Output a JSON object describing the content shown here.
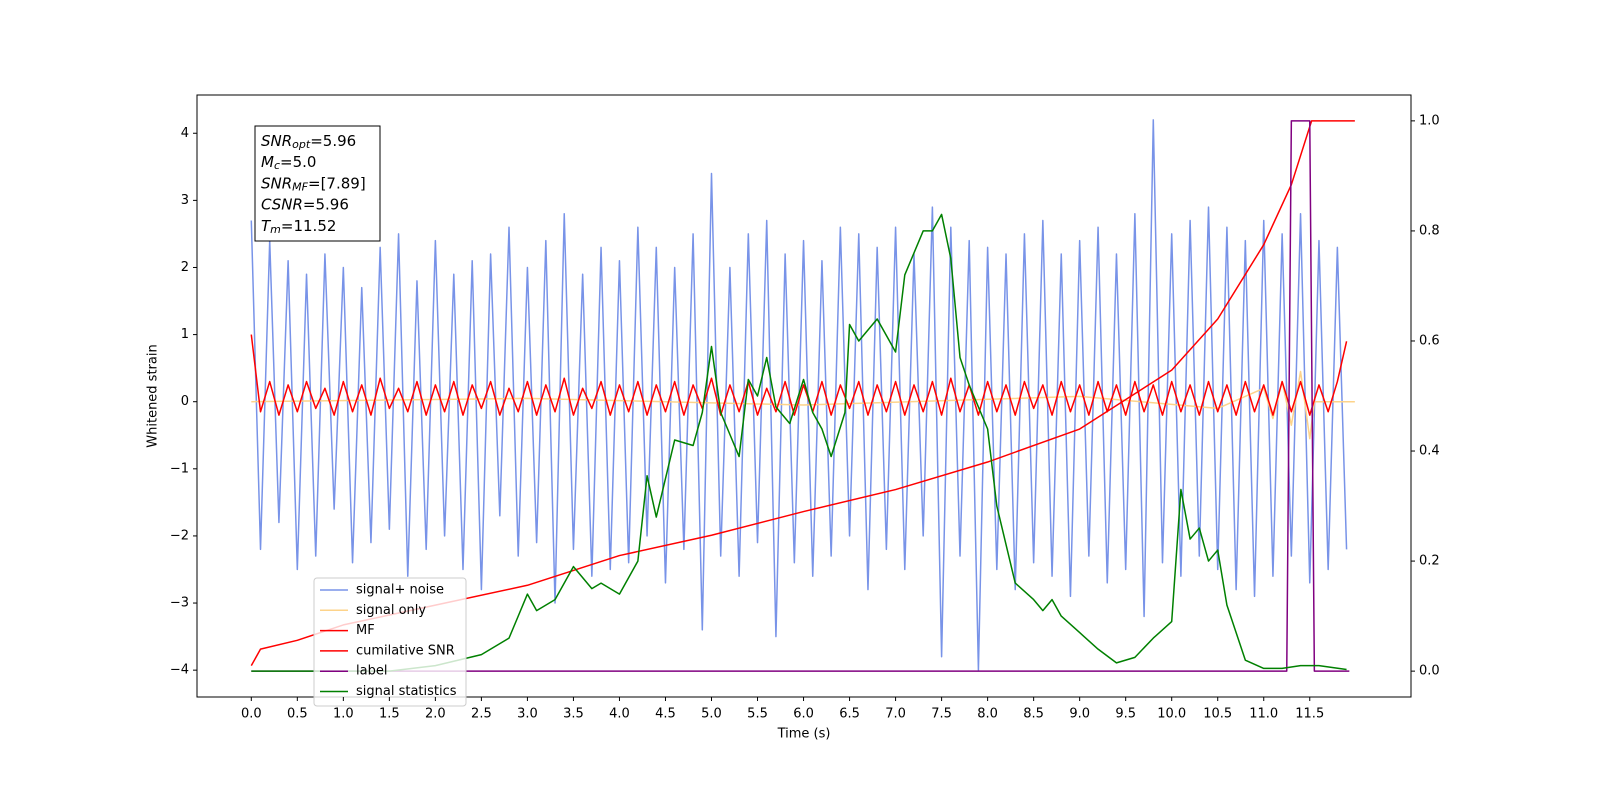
{
  "chart_data": {
    "type": "line",
    "xlabel": "Time (s)",
    "ylabel": "Whitened strain",
    "xlim": [
      -0.59,
      12.6
    ],
    "ylim": [
      -4.4,
      4.57
    ],
    "y2lim": [
      -0.047,
      1.047
    ],
    "xticks": [
      {
        "value": 0,
        "label": "0.0"
      },
      0.5,
      {
        "value": 1,
        "label": "1.0"
      },
      1.5,
      {
        "value": 2,
        "label": "2.0"
      },
      2.5,
      {
        "value": 3,
        "label": "3.0"
      },
      3.5,
      {
        "value": 4,
        "label": "4.0"
      },
      4.5,
      {
        "value": 5,
        "label": "5.0"
      },
      5.5,
      {
        "value": 6,
        "label": "6.0"
      },
      6.5,
      {
        "value": 7,
        "label": "7.0"
      },
      7.5,
      {
        "value": 8,
        "label": "8.0"
      },
      8.5,
      {
        "value": 9,
        "label": "9.0"
      },
      9.5,
      {
        "value": 10,
        "label": "10.0"
      },
      10.5,
      {
        "value": 11,
        "label": "11.0"
      },
      11.5
    ],
    "yticks": [
      {
        "value": -4,
        "label": "−4"
      },
      {
        "value": -3,
        "label": "−3"
      },
      {
        "value": -2,
        "label": "−2"
      },
      {
        "value": -1,
        "label": "−1"
      },
      0,
      1,
      2,
      3,
      4
    ],
    "y2ticks": [
      {
        "value": 0,
        "label": "0.0"
      },
      0.2,
      0.4,
      0.6,
      0.8,
      {
        "value": 1,
        "label": "1.0"
      }
    ],
    "legend_loc": "lower left",
    "annotation": [
      {
        "symbol": "SNR",
        "subscript": "opt",
        "text": "=5.96"
      },
      {
        "symbol": "M",
        "subscript": "c",
        "text": "=5.0"
      },
      {
        "symbol": "SNR",
        "subscript": "MF",
        "text": "=[7.89]"
      },
      {
        "symbol": "CSNR",
        "text": "=5.96"
      },
      {
        "symbol": "T",
        "subscript": "m",
        "text": "=11.52"
      }
    ],
    "series": [
      {
        "name": "signal+ noise",
        "color": "#7893e8",
        "axis": "y",
        "x": [
          0.0,
          0.1,
          0.2,
          0.3,
          0.4,
          0.5,
          0.6,
          0.7,
          0.8,
          0.9,
          1.0,
          1.1,
          1.2,
          1.3,
          1.4,
          1.5,
          1.6,
          1.7,
          1.8,
          1.9,
          2.0,
          2.1,
          2.2,
          2.3,
          2.4,
          2.5,
          2.6,
          2.7,
          2.8,
          2.9,
          3.0,
          3.1,
          3.2,
          3.3,
          3.4,
          3.5,
          3.6,
          3.7,
          3.8,
          3.9,
          4.0,
          4.1,
          4.2,
          4.3,
          4.4,
          4.5,
          4.6,
          4.7,
          4.8,
          4.9,
          5.0,
          5.1,
          5.2,
          5.3,
          5.4,
          5.5,
          5.6,
          5.7,
          5.8,
          5.9,
          6.0,
          6.1,
          6.2,
          6.3,
          6.4,
          6.5,
          6.6,
          6.7,
          6.8,
          6.9,
          7.0,
          7.1,
          7.2,
          7.3,
          7.4,
          7.5,
          7.6,
          7.7,
          7.8,
          7.9,
          8.0,
          8.1,
          8.2,
          8.3,
          8.4,
          8.5,
          8.6,
          8.7,
          8.8,
          8.9,
          9.0,
          9.1,
          9.2,
          9.3,
          9.4,
          9.5,
          9.6,
          9.7,
          9.8,
          9.9,
          10.0,
          10.1,
          10.2,
          10.3,
          10.4,
          10.5,
          10.6,
          10.7,
          10.8,
          10.9,
          11.0,
          11.1,
          11.2,
          11.3,
          11.4,
          11.5,
          11.6,
          11.7,
          11.8,
          11.9
        ],
        "values": [
          2.7,
          -2.2,
          2.4,
          -1.8,
          2.1,
          -2.5,
          1.9,
          -2.3,
          2.2,
          -1.6,
          2.0,
          -2.4,
          1.7,
          -2.1,
          2.3,
          -1.9,
          2.5,
          -2.6,
          1.8,
          -2.2,
          2.4,
          -2.0,
          1.9,
          -2.5,
          2.1,
          -2.8,
          2.2,
          -1.7,
          2.6,
          -2.3,
          2.0,
          -2.1,
          2.4,
          -3.0,
          2.8,
          -2.2,
          1.9,
          -2.6,
          2.3,
          -2.5,
          2.1,
          -2.4,
          2.6,
          -2.0,
          2.3,
          -2.7,
          2.0,
          -2.2,
          2.5,
          -3.4,
          3.4,
          -2.3,
          2.0,
          -2.6,
          2.5,
          -2.1,
          2.7,
          -3.5,
          2.2,
          -2.4,
          2.4,
          -2.6,
          2.1,
          -2.3,
          2.6,
          -2.0,
          2.5,
          -2.8,
          2.3,
          -2.2,
          2.6,
          -2.5,
          2.2,
          -2.0,
          2.9,
          -3.8,
          2.6,
          -2.3,
          2.4,
          -4.0,
          2.3,
          -2.5,
          2.2,
          -2.8,
          2.5,
          -2.4,
          2.7,
          -2.6,
          2.2,
          -2.9,
          2.4,
          -2.3,
          2.6,
          -2.7,
          2.2,
          -2.5,
          2.8,
          -3.2,
          4.2,
          -2.4,
          2.5,
          -2.6,
          2.7,
          -2.3,
          2.9,
          -2.5,
          2.6,
          -2.8,
          2.4,
          -2.9,
          2.7,
          -2.6,
          2.5,
          -2.3,
          2.8,
          -2.7,
          2.4,
          -2.5,
          2.3,
          -2.2
        ]
      },
      {
        "name": "signal only",
        "color": "#fdd38a",
        "axis": "y",
        "x": [
          0,
          3,
          6,
          9,
          10.5,
          11.0,
          11.1,
          11.2,
          11.3,
          11.4,
          11.5,
          11.55,
          11.99
        ],
        "values": [
          0,
          0.05,
          -0.05,
          0.08,
          -0.1,
          0.2,
          -0.25,
          0.3,
          -0.35,
          0.45,
          -0.55,
          0,
          0
        ]
      },
      {
        "name": "MF",
        "color": "#ff0000",
        "axis": "y",
        "x": [
          0.0,
          0.1,
          0.2,
          0.3,
          0.4,
          0.5,
          0.6,
          0.7,
          0.8,
          0.9,
          1.0,
          1.1,
          1.2,
          1.3,
          1.4,
          1.5,
          1.6,
          1.7,
          1.8,
          1.9,
          2.0,
          2.1,
          2.2,
          2.3,
          2.4,
          2.5,
          2.6,
          2.7,
          2.8,
          2.9,
          3.0,
          3.1,
          3.2,
          3.3,
          3.4,
          3.5,
          3.6,
          3.7,
          3.8,
          3.9,
          4.0,
          4.1,
          4.2,
          4.3,
          4.4,
          4.5,
          4.6,
          4.7,
          4.8,
          4.9,
          5.0,
          5.1,
          5.2,
          5.3,
          5.4,
          5.5,
          5.6,
          5.7,
          5.8,
          5.9,
          6.0,
          6.1,
          6.2,
          6.3,
          6.4,
          6.5,
          6.6,
          6.7,
          6.8,
          6.9,
          7.0,
          7.1,
          7.2,
          7.3,
          7.4,
          7.5,
          7.6,
          7.7,
          7.8,
          7.9,
          8.0,
          8.1,
          8.2,
          8.3,
          8.4,
          8.5,
          8.6,
          8.7,
          8.8,
          8.9,
          9.0,
          9.1,
          9.2,
          9.3,
          9.4,
          9.5,
          9.6,
          9.7,
          9.8,
          9.9,
          10.0,
          10.1,
          10.2,
          10.3,
          10.4,
          10.5,
          10.6,
          10.7,
          10.8,
          10.9,
          11.0,
          11.1,
          11.2,
          11.3,
          11.4,
          11.5,
          11.6,
          11.7,
          11.8,
          11.9
        ],
        "values": [
          1.0,
          -0.15,
          0.3,
          -0.2,
          0.25,
          -0.15,
          0.3,
          -0.1,
          0.2,
          -0.2,
          0.3,
          -0.15,
          0.25,
          -0.2,
          0.35,
          -0.1,
          0.2,
          -0.15,
          0.3,
          -0.2,
          0.25,
          -0.15,
          0.3,
          -0.2,
          0.25,
          -0.1,
          0.3,
          -0.2,
          0.2,
          -0.15,
          0.3,
          -0.2,
          0.25,
          -0.15,
          0.35,
          -0.2,
          0.2,
          -0.1,
          0.3,
          -0.2,
          0.25,
          -0.15,
          0.3,
          -0.2,
          0.25,
          -0.15,
          0.3,
          -0.2,
          0.25,
          -0.1,
          0.35,
          -0.2,
          0.25,
          -0.15,
          0.3,
          -0.2,
          0.2,
          -0.15,
          0.3,
          -0.2,
          0.25,
          -0.15,
          0.3,
          -0.2,
          0.25,
          -0.1,
          0.3,
          -0.2,
          0.25,
          -0.15,
          0.3,
          -0.2,
          0.25,
          -0.15,
          0.3,
          -0.2,
          0.35,
          -0.15,
          0.25,
          -0.2,
          0.3,
          -0.15,
          0.25,
          -0.2,
          0.3,
          -0.1,
          0.25,
          -0.2,
          0.3,
          -0.15,
          0.25,
          -0.2,
          0.3,
          -0.15,
          0.25,
          -0.2,
          0.3,
          -0.15,
          0.25,
          -0.2,
          0.3,
          -0.15,
          0.25,
          -0.2,
          0.3,
          -0.15,
          0.25,
          -0.2,
          0.3,
          -0.15,
          0.25,
          -0.2,
          0.3,
          -0.15,
          0.3,
          -0.2,
          0.25,
          -0.15,
          0.3,
          0.9
        ]
      },
      {
        "name": "cumilative SNR",
        "color": "#ff0000",
        "axis": "y2",
        "x": [
          0,
          0.1,
          0.5,
          1,
          2,
          3,
          4,
          5,
          6,
          7,
          8,
          9,
          10,
          10.5,
          11,
          11.3,
          11.52,
          11.99
        ],
        "values": [
          0.01,
          0.04,
          0.056,
          0.084,
          0.12,
          0.156,
          0.21,
          0.247,
          0.29,
          0.33,
          0.38,
          0.44,
          0.547,
          0.64,
          0.775,
          0.884,
          1.0,
          1.0
        ]
      },
      {
        "name": "label",
        "color": "#800080",
        "axis": "y2",
        "x": [
          0,
          11.25,
          11.3,
          11.5,
          11.55,
          11.93
        ],
        "values": [
          0,
          0,
          1,
          1,
          0,
          0
        ]
      },
      {
        "name": "signal statistics",
        "color": "#008000",
        "axis": "y2",
        "x": [
          0,
          1.5,
          2.0,
          2.5,
          2.8,
          2.9,
          3.0,
          3.1,
          3.3,
          3.5,
          3.7,
          3.8,
          4.0,
          4.2,
          4.3,
          4.4,
          4.6,
          4.8,
          4.9,
          5.0,
          5.1,
          5.2,
          5.3,
          5.4,
          5.5,
          5.6,
          5.7,
          5.85,
          6.0,
          6.1,
          6.2,
          6.3,
          6.45,
          6.5,
          6.6,
          6.8,
          7.0,
          7.1,
          7.3,
          7.4,
          7.5,
          7.6,
          7.7,
          7.8,
          8.0,
          8.1,
          8.3,
          8.5,
          8.6,
          8.7,
          8.8,
          9.0,
          9.2,
          9.4,
          9.6,
          9.8,
          10.0,
          10.1,
          10.2,
          10.3,
          10.4,
          10.5,
          10.6,
          10.7,
          10.8,
          11.0,
          11.2,
          11.4,
          11.6,
          11.9
        ],
        "values": [
          0,
          0,
          0.01,
          0.03,
          0.06,
          0.1,
          0.14,
          0.11,
          0.13,
          0.19,
          0.15,
          0.16,
          0.14,
          0.2,
          0.355,
          0.28,
          0.42,
          0.41,
          0.47,
          0.59,
          0.47,
          0.43,
          0.39,
          0.53,
          0.5,
          0.57,
          0.48,
          0.45,
          0.53,
          0.47,
          0.44,
          0.39,
          0.47,
          0.63,
          0.6,
          0.64,
          0.58,
          0.72,
          0.8,
          0.8,
          0.83,
          0.75,
          0.57,
          0.52,
          0.44,
          0.3,
          0.16,
          0.13,
          0.11,
          0.13,
          0.1,
          0.07,
          0.04,
          0.015,
          0.025,
          0.06,
          0.09,
          0.33,
          0.24,
          0.26,
          0.2,
          0.22,
          0.12,
          0.07,
          0.02,
          0.005,
          0.005,
          0.01,
          0.01,
          0.003
        ]
      }
    ]
  }
}
